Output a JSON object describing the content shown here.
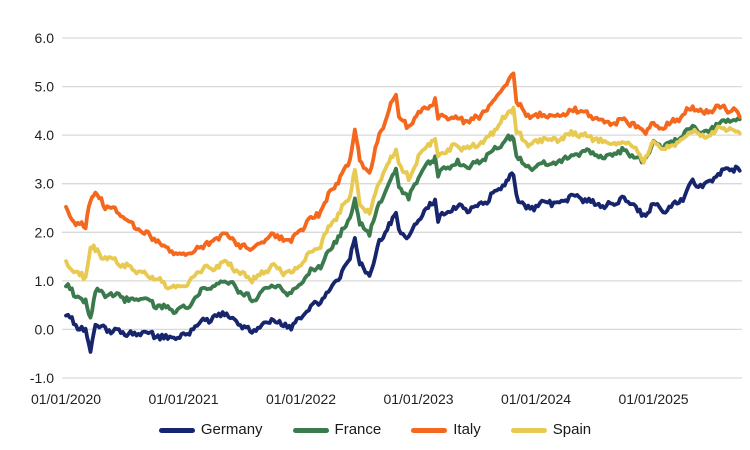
{
  "figure": {
    "background": "#ffffff",
    "gridline_color": "#d9d9d9",
    "axis_text_color": "#1f1f1f"
  },
  "chart_data": {
    "type": "line",
    "title": "",
    "xlabel": "",
    "ylabel": "",
    "grid": "horizontal",
    "legend_position": "bottom",
    "y_axis": {
      "min": -1.0,
      "max": 6.0,
      "step": 1.0,
      "tick_labels": [
        "6.0",
        "5.0",
        "4.0",
        "3.0",
        "2.0",
        "1.0",
        "0.0",
        "-1.0"
      ]
    },
    "x_axis": {
      "tick_labels": [
        "01/01/2020",
        "01/01/2021",
        "01/01/2022",
        "01/01/2023",
        "01/01/2024",
        "01/01/2025"
      ],
      "unit": "date"
    },
    "t_months_since_jan_2020": [
      0,
      1,
      2,
      2.5,
      3,
      4,
      5,
      6,
      7,
      8,
      9,
      10,
      11,
      12,
      13,
      14,
      15,
      16,
      17,
      18,
      19,
      20,
      21,
      22,
      23,
      24,
      25,
      26,
      27,
      28,
      29,
      29.5,
      30,
      31,
      32,
      33,
      33.7,
      34,
      35,
      36,
      37,
      37.7,
      38,
      39,
      40,
      41,
      42,
      43,
      44,
      45,
      45.7,
      46,
      47,
      48,
      49,
      50,
      51,
      52,
      53,
      54,
      55,
      56,
      57,
      58,
      59,
      60,
      61,
      62,
      62.2,
      63,
      64,
      65,
      66,
      67,
      68,
      68.8
    ],
    "series": [
      {
        "name": "Germany",
        "color": "#16256d",
        "values": [
          0.32,
          0.1,
          -0.02,
          -0.45,
          0.08,
          0.0,
          -0.02,
          -0.06,
          -0.1,
          -0.04,
          -0.13,
          -0.16,
          -0.19,
          -0.14,
          0.02,
          0.2,
          0.22,
          0.33,
          0.24,
          0.08,
          -0.06,
          0.05,
          0.21,
          0.1,
          0.04,
          0.25,
          0.45,
          0.55,
          0.85,
          1.1,
          1.45,
          1.92,
          1.35,
          1.12,
          1.8,
          2.15,
          2.38,
          2.08,
          1.85,
          2.28,
          2.52,
          2.68,
          2.28,
          2.45,
          2.52,
          2.45,
          2.55,
          2.65,
          2.85,
          3.05,
          3.2,
          2.75,
          2.48,
          2.52,
          2.66,
          2.58,
          2.7,
          2.76,
          2.68,
          2.6,
          2.52,
          2.6,
          2.7,
          2.55,
          2.32,
          2.62,
          2.42,
          2.55,
          2.6,
          2.72,
          3.05,
          2.95,
          3.08,
          3.25,
          3.3,
          3.28
        ]
      },
      {
        "name": "France",
        "color": "#3a7a4d",
        "values": [
          0.92,
          0.7,
          0.55,
          0.28,
          0.8,
          0.7,
          0.7,
          0.64,
          0.6,
          0.65,
          0.52,
          0.46,
          0.4,
          0.44,
          0.6,
          0.85,
          0.88,
          1.02,
          0.92,
          0.75,
          0.62,
          0.73,
          0.93,
          0.8,
          0.76,
          0.95,
          1.2,
          1.3,
          1.65,
          1.95,
          2.28,
          2.72,
          2.18,
          1.98,
          2.6,
          2.98,
          3.28,
          2.98,
          2.7,
          3.18,
          3.42,
          3.55,
          3.18,
          3.35,
          3.42,
          3.35,
          3.45,
          3.55,
          3.75,
          3.9,
          3.98,
          3.58,
          3.32,
          3.36,
          3.46,
          3.4,
          3.54,
          3.6,
          3.66,
          3.6,
          3.54,
          3.6,
          3.68,
          3.56,
          3.46,
          3.88,
          3.78,
          3.85,
          3.88,
          3.98,
          4.18,
          4.05,
          4.15,
          4.3,
          4.32,
          4.28
        ]
      },
      {
        "name": "Italy",
        "color": "#f5671d",
        "values": [
          2.45,
          2.2,
          2.1,
          2.72,
          2.82,
          2.55,
          2.48,
          2.32,
          2.12,
          2.0,
          1.85,
          1.7,
          1.56,
          1.55,
          1.6,
          1.75,
          1.78,
          2.0,
          1.86,
          1.7,
          1.68,
          1.73,
          1.95,
          1.86,
          1.84,
          2.05,
          2.28,
          2.42,
          2.82,
          3.1,
          3.48,
          4.15,
          3.45,
          3.22,
          4.0,
          4.55,
          4.85,
          4.38,
          4.12,
          4.48,
          4.58,
          4.72,
          4.32,
          4.4,
          4.35,
          4.28,
          4.38,
          4.52,
          4.8,
          5.05,
          5.32,
          4.72,
          4.42,
          4.38,
          4.45,
          4.35,
          4.46,
          4.52,
          4.45,
          4.36,
          4.26,
          4.24,
          4.32,
          4.2,
          4.06,
          4.25,
          4.15,
          4.28,
          4.32,
          4.4,
          4.6,
          4.45,
          4.5,
          4.6,
          4.5,
          4.42
        ]
      },
      {
        "name": "Spain",
        "color": "#e8ca52",
        "values": [
          1.38,
          1.16,
          1.05,
          1.75,
          1.62,
          1.46,
          1.42,
          1.3,
          1.22,
          1.16,
          1.04,
          0.94,
          0.85,
          0.88,
          1.05,
          1.28,
          1.25,
          1.4,
          1.3,
          1.14,
          1.04,
          1.14,
          1.33,
          1.2,
          1.16,
          1.35,
          1.6,
          1.73,
          2.15,
          2.42,
          2.78,
          3.25,
          2.58,
          2.38,
          3.05,
          3.45,
          3.72,
          3.38,
          3.12,
          3.55,
          3.8,
          3.95,
          3.58,
          3.72,
          3.78,
          3.72,
          3.82,
          3.92,
          4.15,
          4.4,
          4.58,
          4.08,
          3.82,
          3.85,
          3.95,
          3.88,
          4.0,
          4.05,
          4.0,
          3.92,
          3.84,
          3.82,
          3.88,
          3.76,
          3.48,
          3.82,
          3.72,
          3.8,
          3.83,
          3.92,
          4.1,
          3.98,
          4.05,
          4.15,
          4.12,
          4.08
        ]
      }
    ]
  },
  "legend": {
    "items": [
      {
        "label": "Germany"
      },
      {
        "label": "France"
      },
      {
        "label": "Italy"
      },
      {
        "label": "Spain"
      }
    ]
  }
}
